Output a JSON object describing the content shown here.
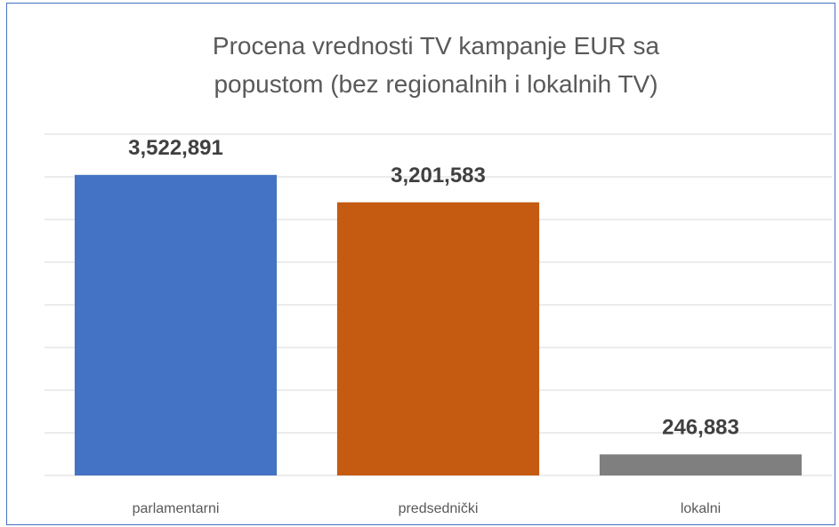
{
  "chart_data": {
    "type": "bar",
    "title": "Procena vrednosti TV kampanje EUR sa popustom (bez regionalnih i lokalnih TV)",
    "categories": [
      "parlamentarni",
      "predsednički",
      "lokalni"
    ],
    "values": [
      3522891,
      3201583,
      246883
    ],
    "value_labels": [
      "3,522,891",
      "3,201,583",
      "246,883"
    ],
    "colors": [
      "#4472c4",
      "#c55a11",
      "#7f7f7f"
    ],
    "ylim": [
      0,
      4000000
    ],
    "yticks": [
      0,
      500000,
      1000000,
      1500000,
      2000000,
      2500000,
      3000000,
      3500000,
      4000000
    ],
    "grid": true
  }
}
